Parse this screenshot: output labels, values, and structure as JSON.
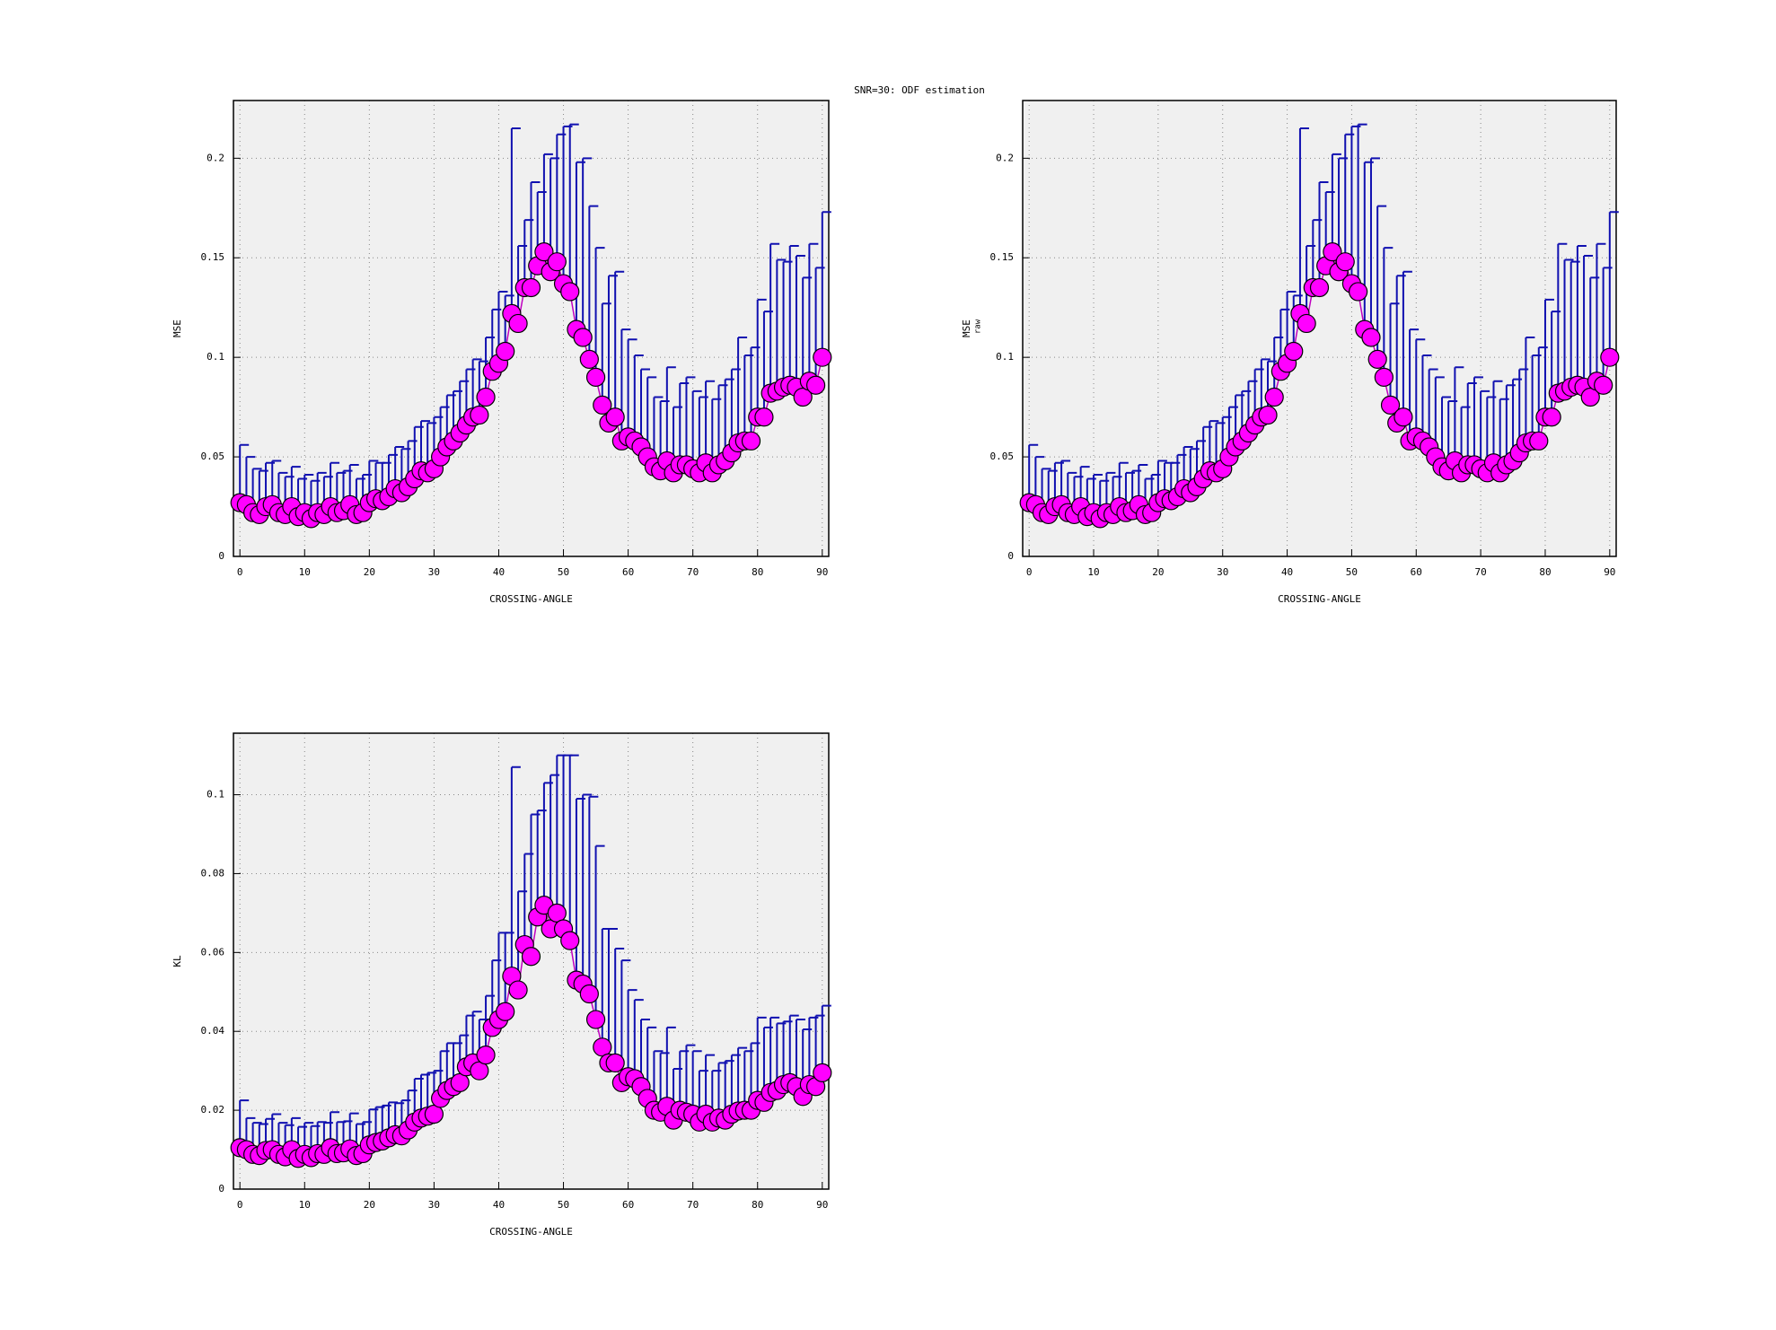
{
  "title": "SNR=30: ODF estimation",
  "chart_data": [
    {
      "type": "errorbar",
      "xlabel": "CROSSING-ANGLE",
      "ylabel": "MSE",
      "xlim": [
        -1,
        91
      ],
      "xticks": [
        0,
        10,
        20,
        30,
        40,
        50,
        60,
        70,
        80,
        90
      ],
      "ylim": [
        0,
        0.229
      ],
      "yticks": [
        0,
        0.05,
        0.1,
        0.15,
        0.2
      ],
      "grid": true,
      "x": [
        0,
        1,
        2,
        3,
        4,
        5,
        6,
        7,
        8,
        9,
        10,
        11,
        12,
        13,
        14,
        15,
        16,
        17,
        18,
        19,
        20,
        21,
        22,
        23,
        24,
        25,
        26,
        27,
        28,
        29,
        30,
        31,
        32,
        33,
        34,
        35,
        36,
        37,
        38,
        39,
        40,
        41,
        42,
        43,
        44,
        45,
        46,
        47,
        48,
        49,
        50,
        51,
        52,
        53,
        54,
        55,
        56,
        57,
        58,
        59,
        60,
        61,
        62,
        63,
        64,
        65,
        66,
        67,
        68,
        69,
        70,
        71,
        72,
        73,
        74,
        75,
        76,
        77,
        78,
        79,
        80,
        81,
        82,
        83,
        84,
        85,
        86,
        87,
        88,
        89,
        90
      ],
      "series": [
        {
          "color": "#ff00ff",
          "line_color": "#c000c0",
          "error_color": "#1010b0",
          "values": [
            0.027,
            0.026,
            0.022,
            0.021,
            0.025,
            0.026,
            0.022,
            0.021,
            0.025,
            0.02,
            0.022,
            0.019,
            0.022,
            0.021,
            0.025,
            0.022,
            0.023,
            0.026,
            0.021,
            0.022,
            0.027,
            0.029,
            0.028,
            0.03,
            0.034,
            0.032,
            0.035,
            0.039,
            0.043,
            0.042,
            0.044,
            0.05,
            0.055,
            0.058,
            0.062,
            0.066,
            0.07,
            0.071,
            0.08,
            0.093,
            0.097,
            0.103,
            0.122,
            0.117,
            0.135,
            0.135,
            0.146,
            0.153,
            0.143,
            0.148,
            0.137,
            0.133,
            0.114,
            0.11,
            0.099,
            0.09,
            0.076,
            0.067,
            0.07,
            0.058,
            0.06,
            0.058,
            0.055,
            0.05,
            0.045,
            0.043,
            0.048,
            0.042,
            0.046,
            0.046,
            0.044,
            0.042,
            0.047,
            0.042,
            0.046,
            0.048,
            0.052,
            0.057,
            0.058,
            0.058,
            0.07,
            0.07,
            0.082,
            0.083,
            0.085,
            0.086,
            0.085,
            0.08,
            0.088,
            0.086,
            0.1
          ],
          "errors": [
            0.029,
            0.024,
            0.022,
            0.022,
            0.022,
            0.022,
            0.02,
            0.019,
            0.02,
            0.019,
            0.019,
            0.019,
            0.02,
            0.019,
            0.022,
            0.02,
            0.02,
            0.02,
            0.018,
            0.019,
            0.021,
            0.018,
            0.019,
            0.021,
            0.021,
            0.022,
            0.023,
            0.026,
            0.025,
            0.025,
            0.026,
            0.025,
            0.026,
            0.025,
            0.026,
            0.028,
            0.029,
            0.027,
            0.03,
            0.031,
            0.036,
            0.028,
            0.093,
            0.039,
            0.034,
            0.053,
            0.037,
            0.049,
            0.057,
            0.064,
            0.079,
            0.084,
            0.084,
            0.09,
            0.077,
            0.065,
            0.051,
            0.074,
            0.073,
            0.056,
            0.049,
            0.043,
            0.039,
            0.04,
            0.035,
            0.035,
            0.047,
            0.033,
            0.041,
            0.044,
            0.039,
            0.038,
            0.041,
            0.037,
            0.04,
            0.041,
            0.042,
            0.053,
            0.043,
            0.047,
            0.059,
            0.053,
            0.075,
            0.066,
            0.063,
            0.07,
            0.066,
            0.06,
            0.069,
            0.059,
            0.073
          ]
        }
      ]
    },
    {
      "type": "errorbar",
      "xlabel": "CROSSING-ANGLE",
      "ylabel": "MSE",
      "ylabel_sub": "raw",
      "xlim": [
        -1,
        91
      ],
      "xticks": [
        0,
        10,
        20,
        30,
        40,
        50,
        60,
        70,
        80,
        90
      ],
      "ylim": [
        0,
        0.229
      ],
      "yticks": [
        0,
        0.05,
        0.1,
        0.15,
        0.2
      ],
      "grid": true,
      "x": [
        0,
        1,
        2,
        3,
        4,
        5,
        6,
        7,
        8,
        9,
        10,
        11,
        12,
        13,
        14,
        15,
        16,
        17,
        18,
        19,
        20,
        21,
        22,
        23,
        24,
        25,
        26,
        27,
        28,
        29,
        30,
        31,
        32,
        33,
        34,
        35,
        36,
        37,
        38,
        39,
        40,
        41,
        42,
        43,
        44,
        45,
        46,
        47,
        48,
        49,
        50,
        51,
        52,
        53,
        54,
        55,
        56,
        57,
        58,
        59,
        60,
        61,
        62,
        63,
        64,
        65,
        66,
        67,
        68,
        69,
        70,
        71,
        72,
        73,
        74,
        75,
        76,
        77,
        78,
        79,
        80,
        81,
        82,
        83,
        84,
        85,
        86,
        87,
        88,
        89,
        90
      ],
      "series": [
        {
          "color": "#ff00ff",
          "line_color": "#c000c0",
          "error_color": "#1010b0",
          "values": [
            0.027,
            0.026,
            0.022,
            0.021,
            0.025,
            0.026,
            0.022,
            0.021,
            0.025,
            0.02,
            0.022,
            0.019,
            0.022,
            0.021,
            0.025,
            0.022,
            0.023,
            0.026,
            0.021,
            0.022,
            0.027,
            0.029,
            0.028,
            0.03,
            0.034,
            0.032,
            0.035,
            0.039,
            0.043,
            0.042,
            0.044,
            0.05,
            0.055,
            0.058,
            0.062,
            0.066,
            0.07,
            0.071,
            0.08,
            0.093,
            0.097,
            0.103,
            0.122,
            0.117,
            0.135,
            0.135,
            0.146,
            0.153,
            0.143,
            0.148,
            0.137,
            0.133,
            0.114,
            0.11,
            0.099,
            0.09,
            0.076,
            0.067,
            0.07,
            0.058,
            0.06,
            0.058,
            0.055,
            0.05,
            0.045,
            0.043,
            0.048,
            0.042,
            0.046,
            0.046,
            0.044,
            0.042,
            0.047,
            0.042,
            0.046,
            0.048,
            0.052,
            0.057,
            0.058,
            0.058,
            0.07,
            0.07,
            0.082,
            0.083,
            0.085,
            0.086,
            0.085,
            0.08,
            0.088,
            0.086,
            0.1
          ],
          "errors": [
            0.029,
            0.024,
            0.022,
            0.022,
            0.022,
            0.022,
            0.02,
            0.019,
            0.02,
            0.019,
            0.019,
            0.019,
            0.02,
            0.019,
            0.022,
            0.02,
            0.02,
            0.02,
            0.018,
            0.019,
            0.021,
            0.018,
            0.019,
            0.021,
            0.021,
            0.022,
            0.023,
            0.026,
            0.025,
            0.025,
            0.026,
            0.025,
            0.026,
            0.025,
            0.026,
            0.028,
            0.029,
            0.027,
            0.03,
            0.031,
            0.036,
            0.028,
            0.093,
            0.039,
            0.034,
            0.053,
            0.037,
            0.049,
            0.057,
            0.064,
            0.079,
            0.084,
            0.084,
            0.09,
            0.077,
            0.065,
            0.051,
            0.074,
            0.073,
            0.056,
            0.049,
            0.043,
            0.039,
            0.04,
            0.035,
            0.035,
            0.047,
            0.033,
            0.041,
            0.044,
            0.039,
            0.038,
            0.041,
            0.037,
            0.04,
            0.041,
            0.042,
            0.053,
            0.043,
            0.047,
            0.059,
            0.053,
            0.075,
            0.066,
            0.063,
            0.07,
            0.066,
            0.06,
            0.069,
            0.059,
            0.073
          ]
        }
      ]
    },
    {
      "type": "errorbar",
      "xlabel": "CROSSING-ANGLE",
      "ylabel": "KL",
      "xlim": [
        -1,
        91
      ],
      "xticks": [
        0,
        10,
        20,
        30,
        40,
        50,
        60,
        70,
        80,
        90
      ],
      "ylim": [
        0,
        0.1156
      ],
      "yticks": [
        0,
        0.02,
        0.04,
        0.06,
        0.08,
        0.1
      ],
      "grid": true,
      "x": [
        0,
        1,
        2,
        3,
        4,
        5,
        6,
        7,
        8,
        9,
        10,
        11,
        12,
        13,
        14,
        15,
        16,
        17,
        18,
        19,
        20,
        21,
        22,
        23,
        24,
        25,
        26,
        27,
        28,
        29,
        30,
        31,
        32,
        33,
        34,
        35,
        36,
        37,
        38,
        39,
        40,
        41,
        42,
        43,
        44,
        45,
        46,
        47,
        48,
        49,
        50,
        51,
        52,
        53,
        54,
        55,
        56,
        57,
        58,
        59,
        60,
        61,
        62,
        63,
        64,
        65,
        66,
        67,
        68,
        69,
        70,
        71,
        72,
        73,
        74,
        75,
        76,
        77,
        78,
        79,
        80,
        81,
        82,
        83,
        84,
        85,
        86,
        87,
        88,
        89,
        90
      ],
      "series": [
        {
          "color": "#ff00ff",
          "line_color": "#c000c0",
          "error_color": "#1010b0",
          "values": [
            0.0105,
            0.01,
            0.0088,
            0.0085,
            0.0098,
            0.01,
            0.0088,
            0.0082,
            0.01,
            0.0078,
            0.0088,
            0.008,
            0.009,
            0.0088,
            0.0105,
            0.009,
            0.0092,
            0.0102,
            0.0085,
            0.009,
            0.0112,
            0.0118,
            0.0122,
            0.013,
            0.0138,
            0.0135,
            0.015,
            0.017,
            0.018,
            0.0185,
            0.019,
            0.023,
            0.025,
            0.026,
            0.027,
            0.031,
            0.032,
            0.03,
            0.034,
            0.041,
            0.043,
            0.045,
            0.054,
            0.0505,
            0.062,
            0.059,
            0.069,
            0.072,
            0.066,
            0.07,
            0.066,
            0.063,
            0.053,
            0.052,
            0.0495,
            0.043,
            0.036,
            0.032,
            0.032,
            0.027,
            0.0285,
            0.028,
            0.026,
            0.023,
            0.02,
            0.0195,
            0.021,
            0.0175,
            0.02,
            0.0195,
            0.019,
            0.017,
            0.019,
            0.017,
            0.018,
            0.0175,
            0.019,
            0.0198,
            0.02,
            0.02,
            0.0225,
            0.022,
            0.0245,
            0.025,
            0.0265,
            0.027,
            0.026,
            0.0235,
            0.0265,
            0.026,
            0.0295
          ],
          "errors": [
            0.012,
            0.008,
            0.008,
            0.008,
            0.008,
            0.009,
            0.008,
            0.008,
            0.008,
            0.008,
            0.008,
            0.008,
            0.008,
            0.008,
            0.009,
            0.008,
            0.008,
            0.009,
            0.008,
            0.008,
            0.009,
            0.009,
            0.009,
            0.009,
            0.008,
            0.009,
            0.01,
            0.011,
            0.011,
            0.011,
            0.011,
            0.012,
            0.012,
            0.011,
            0.012,
            0.013,
            0.013,
            0.013,
            0.015,
            0.017,
            0.022,
            0.02,
            0.053,
            0.025,
            0.023,
            0.036,
            0.027,
            0.031,
            0.039,
            0.04,
            0.044,
            0.047,
            0.046,
            0.048,
            0.05,
            0.044,
            0.03,
            0.034,
            0.029,
            0.031,
            0.022,
            0.02,
            0.017,
            0.018,
            0.015,
            0.015,
            0.02,
            0.013,
            0.015,
            0.017,
            0.016,
            0.013,
            0.015,
            0.013,
            0.014,
            0.015,
            0.015,
            0.016,
            0.015,
            0.017,
            0.021,
            0.019,
            0.019,
            0.017,
            0.016,
            0.017,
            0.017,
            0.017,
            0.017,
            0.018,
            0.017
          ]
        }
      ]
    }
  ]
}
